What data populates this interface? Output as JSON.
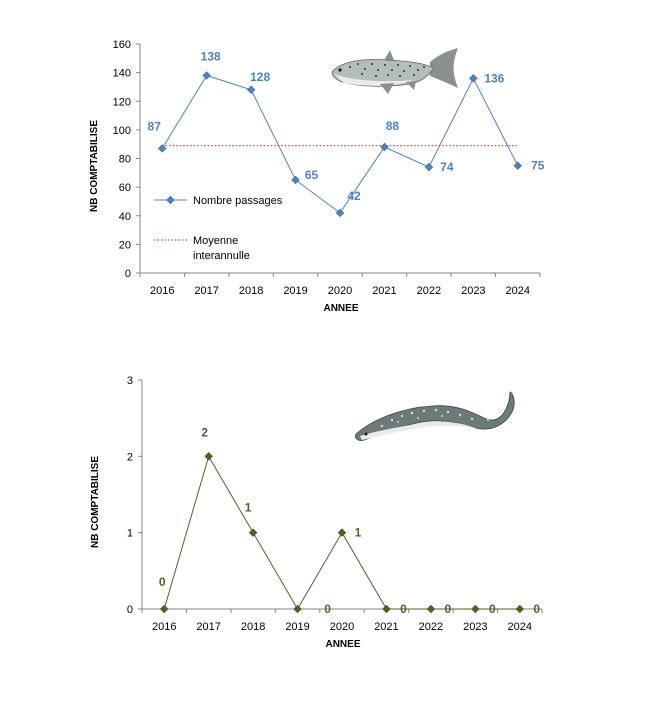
{
  "chart_data": [
    {
      "type": "line",
      "title": "",
      "xlabel": "ANNEE",
      "ylabel": "NB COMPTABILISE",
      "ylim": [
        0,
        160
      ],
      "yticks": [
        0,
        20,
        40,
        60,
        80,
        100,
        120,
        140,
        160
      ],
      "categories": [
        "2016",
        "2017",
        "2018",
        "2019",
        "2020",
        "2021",
        "2022",
        "2023",
        "2024"
      ],
      "series": [
        {
          "name": "Nombre passages",
          "values": [
            87,
            138,
            128,
            65,
            42,
            88,
            74,
            136,
            75
          ],
          "color": "#4f81bd",
          "marker": "diamond"
        },
        {
          "name": "Moyenne interannulle",
          "values": [
            89,
            89,
            89,
            89,
            89,
            89,
            89,
            89,
            89
          ],
          "color": "#c0504d",
          "style": "dotted"
        }
      ],
      "legend": {
        "position": "left",
        "items": [
          "Nombre passages",
          "Moyenne interannulle"
        ]
      },
      "grid": false,
      "illustration": "salmon"
    },
    {
      "type": "line",
      "title": "",
      "xlabel": "ANNEE",
      "ylabel": "NB COMPTABILISE",
      "ylim": [
        0,
        3
      ],
      "yticks": [
        0,
        1,
        2,
        3
      ],
      "categories": [
        "2016",
        "2017",
        "2018",
        "2019",
        "2020",
        "2021",
        "2022",
        "2023",
        "2024"
      ],
      "series": [
        {
          "values": [
            0,
            2,
            1,
            0,
            1,
            0,
            0,
            0,
            0
          ],
          "color": "#4f6228",
          "marker": "diamond"
        }
      ],
      "grid": false,
      "illustration": "lamprey"
    }
  ]
}
